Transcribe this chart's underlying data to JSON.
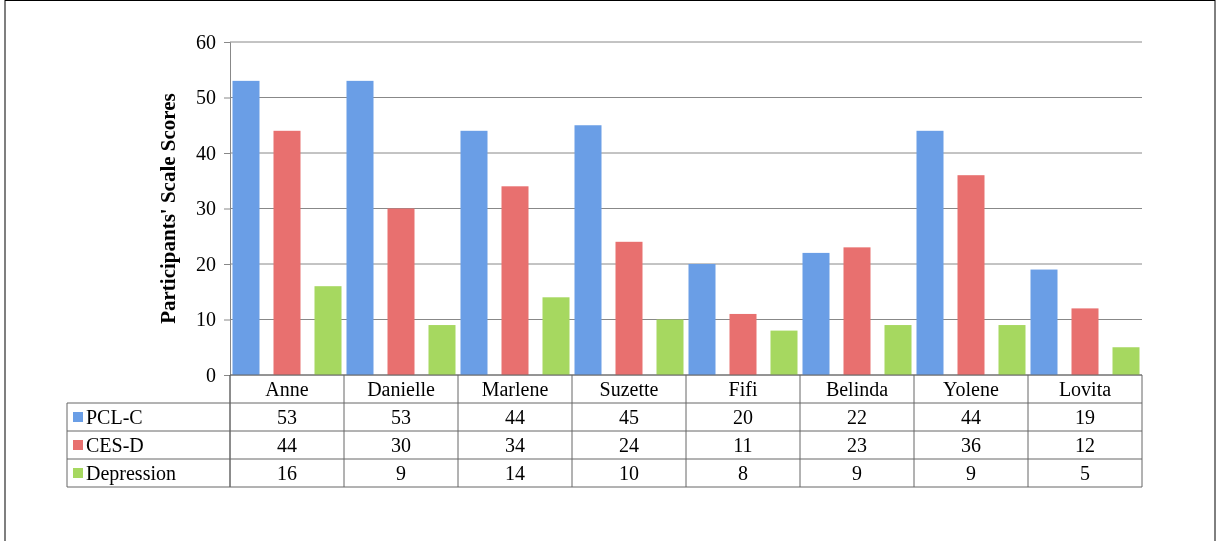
{
  "chart_data": {
    "type": "bar",
    "ylabel": "Participants' Scale Scores",
    "categories": [
      "Anne",
      "Danielle",
      "Marlene",
      "Suzette",
      "Fifi",
      "Belinda",
      "Yolene",
      "Lovita"
    ],
    "series": [
      {
        "name": "PCL-C",
        "color": "#6a9ee6",
        "values": [
          53,
          53,
          44,
          45,
          20,
          22,
          44,
          19
        ]
      },
      {
        "name": "CES-D",
        "color": "#e8706f",
        "values": [
          44,
          30,
          34,
          24,
          11,
          23,
          36,
          12
        ]
      },
      {
        "name": "Depression",
        "color": "#a6d860",
        "values": [
          16,
          9,
          14,
          10,
          8,
          9,
          9,
          5
        ]
      }
    ],
    "ylim": [
      0,
      60
    ],
    "yticks": [
      0,
      10,
      20,
      30,
      40,
      50,
      60
    ],
    "grid": "y",
    "legend": "bottom",
    "data_labels": true
  }
}
